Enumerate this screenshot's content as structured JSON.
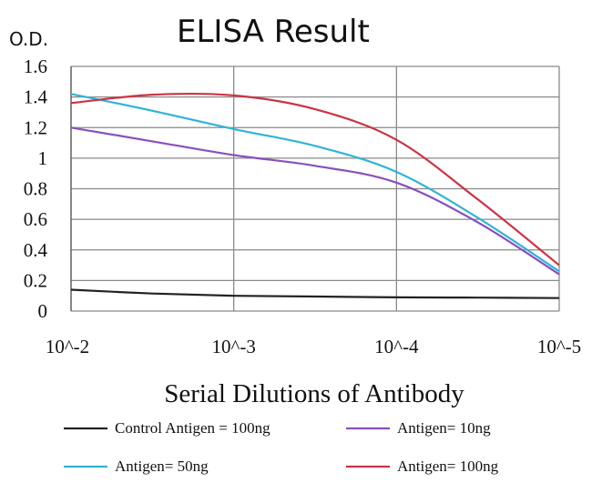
{
  "chart_data": {
    "type": "line",
    "title": "ELISA Result",
    "ylabel": "O.D.",
    "xlabel": "Serial Dilutions of Antibody",
    "x": [
      "10^-2",
      "10^-3",
      "10^-4",
      "10^-5"
    ],
    "ylim": [
      0,
      1.6
    ],
    "yticks": [
      "0",
      "0.2",
      "0.4",
      "0.6",
      "0.8",
      "1",
      "1.2",
      "1.4",
      "1.6"
    ],
    "grid": true,
    "legend_position": "bottom",
    "series": [
      {
        "name": "Control Antigen = 100ng",
        "color": "#222222",
        "points": [
          [
            0,
            0.14
          ],
          [
            0.5,
            0.115
          ],
          [
            1,
            0.1
          ],
          [
            1.5,
            0.095
          ],
          [
            2,
            0.09
          ],
          [
            2.5,
            0.088
          ],
          [
            3,
            0.085
          ]
        ]
      },
      {
        "name": "Antigen= 10ng",
        "color": "#8a4fbf",
        "points": [
          [
            0,
            1.2
          ],
          [
            0.5,
            1.11
          ],
          [
            1,
            1.02
          ],
          [
            1.5,
            0.95
          ],
          [
            2,
            0.84
          ],
          [
            2.5,
            0.58
          ],
          [
            3,
            0.24
          ]
        ]
      },
      {
        "name": "Antigen= 50ng",
        "color": "#2fb4d6",
        "points": [
          [
            0,
            1.42
          ],
          [
            0.5,
            1.31
          ],
          [
            1,
            1.19
          ],
          [
            1.5,
            1.08
          ],
          [
            2,
            0.91
          ],
          [
            2.5,
            0.61
          ],
          [
            3,
            0.26
          ]
        ]
      },
      {
        "name": "Antigen= 100ng",
        "color": "#cc3344",
        "points": [
          [
            0,
            1.36
          ],
          [
            0.5,
            1.415
          ],
          [
            1,
            1.41
          ],
          [
            1.5,
            1.32
          ],
          [
            2,
            1.12
          ],
          [
            2.5,
            0.73
          ],
          [
            3,
            0.3
          ]
        ]
      }
    ]
  }
}
